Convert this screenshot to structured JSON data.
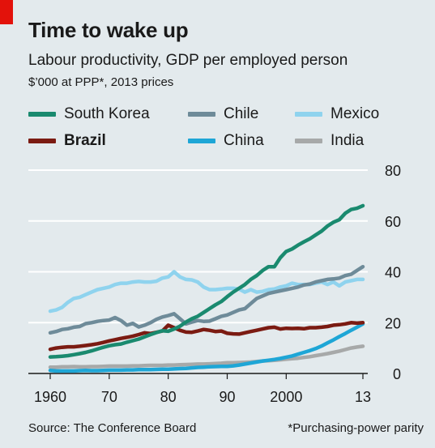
{
  "header": {
    "title": "Time to wake up",
    "subtitle": "Labour productivity, GDP per employed person",
    "units": "$’000 at PPP*, 2013 prices"
  },
  "footer": {
    "source": "Source: The Conference Board",
    "note": "*Purchasing-power parity"
  },
  "chart_data": {
    "type": "line",
    "title": "Time to wake up",
    "subtitle": "Labour productivity, GDP per employed person",
    "ylabel": "$’000 at PPP*, 2013 prices",
    "xlim": [
      1960,
      2013
    ],
    "ylim": [
      0,
      80
    ],
    "y_ticks": [
      0,
      20,
      40,
      60,
      80
    ],
    "x_ticks": [
      1960,
      1970,
      1980,
      1990,
      2000,
      2013
    ],
    "x_tick_labels": [
      "1960",
      "70",
      "80",
      "90",
      "2000",
      "13"
    ],
    "grid": true,
    "legend_position": "top",
    "x": [
      1960,
      1961,
      1962,
      1963,
      1964,
      1965,
      1966,
      1967,
      1968,
      1969,
      1970,
      1971,
      1972,
      1973,
      1974,
      1975,
      1976,
      1977,
      1978,
      1979,
      1980,
      1981,
      1982,
      1983,
      1984,
      1985,
      1986,
      1987,
      1988,
      1989,
      1990,
      1991,
      1992,
      1993,
      1994,
      1995,
      1996,
      1997,
      1998,
      1999,
      2000,
      2001,
      2002,
      2003,
      2004,
      2005,
      2006,
      2007,
      2008,
      2009,
      2010,
      2011,
      2012,
      2013
    ],
    "series": [
      {
        "name": "South Korea",
        "color": "#1a8a6f",
        "bold": false,
        "values": [
          6.5,
          6.6,
          6.8,
          7.0,
          7.4,
          7.8,
          8.3,
          8.9,
          9.6,
          10.3,
          10.9,
          11.3,
          11.6,
          12.3,
          12.9,
          13.5,
          14.4,
          15.3,
          16.1,
          16.8,
          16.6,
          17.5,
          18.6,
          20.2,
          21.5,
          22.5,
          24.0,
          25.5,
          27.0,
          28.3,
          30.2,
          32.0,
          33.5,
          35.0,
          37.0,
          38.5,
          40.5,
          42.0,
          42.0,
          45.5,
          48.0,
          49.0,
          50.5,
          51.8,
          53.0,
          54.5,
          56.0,
          58.0,
          59.5,
          60.5,
          63.0,
          64.5,
          65.0,
          66.0
        ]
      },
      {
        "name": "Chile",
        "color": "#6e8b99",
        "bold": false,
        "values": [
          16.0,
          16.5,
          17.3,
          17.6,
          18.2,
          18.5,
          19.6,
          20.0,
          20.5,
          20.8,
          21.0,
          22.0,
          20.8,
          19.0,
          19.7,
          18.3,
          19.0,
          20.0,
          21.3,
          22.2,
          22.8,
          23.5,
          21.5,
          19.5,
          20.2,
          20.8,
          20.5,
          20.6,
          21.5,
          22.5,
          23.0,
          24.0,
          25.0,
          25.5,
          27.5,
          29.5,
          30.5,
          31.5,
          32.0,
          32.5,
          33.0,
          33.5,
          34.0,
          34.8,
          35.2,
          36.0,
          36.5,
          37.0,
          37.2,
          37.5,
          38.5,
          39.0,
          40.5,
          42.0
        ]
      },
      {
        "name": "Mexico",
        "color": "#8fd3ee",
        "bold": false,
        "values": [
          24.5,
          25.0,
          26.0,
          28.0,
          29.5,
          30.0,
          31.0,
          32.0,
          33.0,
          33.5,
          34.0,
          35.0,
          35.5,
          35.5,
          36.0,
          36.2,
          36.0,
          36.0,
          36.3,
          37.5,
          38.0,
          40.0,
          38.0,
          37.0,
          36.8,
          36.0,
          34.0,
          33.0,
          33.0,
          33.2,
          33.5,
          33.5,
          33.2,
          32.0,
          33.0,
          32.0,
          32.3,
          33.0,
          33.2,
          34.0,
          34.5,
          35.5,
          35.0,
          35.0,
          35.0,
          35.5,
          36.0,
          35.0,
          36.0,
          34.5,
          36.0,
          36.5,
          37.0,
          37.0
        ]
      },
      {
        "name": "Brazil",
        "color": "#7b1b12",
        "bold": true,
        "values": [
          9.5,
          10.0,
          10.3,
          10.5,
          10.5,
          10.7,
          11.0,
          11.3,
          11.7,
          12.2,
          12.8,
          13.3,
          13.8,
          14.2,
          14.7,
          15.3,
          16.0,
          15.7,
          16.2,
          16.7,
          19.0,
          18.0,
          17.0,
          16.3,
          16.2,
          16.7,
          17.3,
          17.0,
          16.5,
          16.7,
          15.8,
          15.6,
          15.5,
          16.0,
          16.5,
          17.0,
          17.5,
          18.0,
          18.2,
          17.5,
          17.8,
          17.7,
          17.8,
          17.6,
          18.0,
          18.0,
          18.2,
          18.5,
          19.0,
          19.2,
          19.5,
          20.0,
          19.8,
          20.0
        ]
      },
      {
        "name": "China",
        "color": "#1ea6d6",
        "bold": false,
        "values": [
          1.2,
          1.0,
          1.0,
          1.0,
          1.0,
          1.1,
          1.2,
          1.1,
          1.1,
          1.2,
          1.3,
          1.3,
          1.3,
          1.4,
          1.4,
          1.5,
          1.5,
          1.5,
          1.6,
          1.7,
          1.7,
          1.8,
          1.9,
          2.0,
          2.2,
          2.4,
          2.5,
          2.6,
          2.7,
          2.8,
          2.8,
          3.0,
          3.3,
          3.7,
          4.1,
          4.5,
          4.9,
          5.2,
          5.5,
          5.9,
          6.4,
          6.9,
          7.6,
          8.3,
          9.0,
          9.8,
          10.8,
          12.0,
          13.2,
          14.5,
          15.7,
          17.0,
          18.2,
          19.5
        ]
      },
      {
        "name": "India",
        "color": "#a7a9a9",
        "bold": false,
        "values": [
          2.5,
          2.5,
          2.6,
          2.6,
          2.7,
          2.6,
          2.6,
          2.7,
          2.7,
          2.8,
          2.9,
          2.9,
          2.9,
          2.9,
          3.0,
          3.0,
          3.1,
          3.2,
          3.2,
          3.2,
          3.3,
          3.3,
          3.4,
          3.5,
          3.6,
          3.7,
          3.7,
          3.8,
          3.9,
          4.0,
          4.2,
          4.2,
          4.3,
          4.4,
          4.5,
          4.7,
          4.9,
          5.0,
          5.2,
          5.4,
          5.6,
          5.8,
          6.0,
          6.3,
          6.6,
          7.0,
          7.4,
          7.8,
          8.3,
          8.8,
          9.4,
          10.0,
          10.4,
          10.7
        ]
      }
    ]
  }
}
